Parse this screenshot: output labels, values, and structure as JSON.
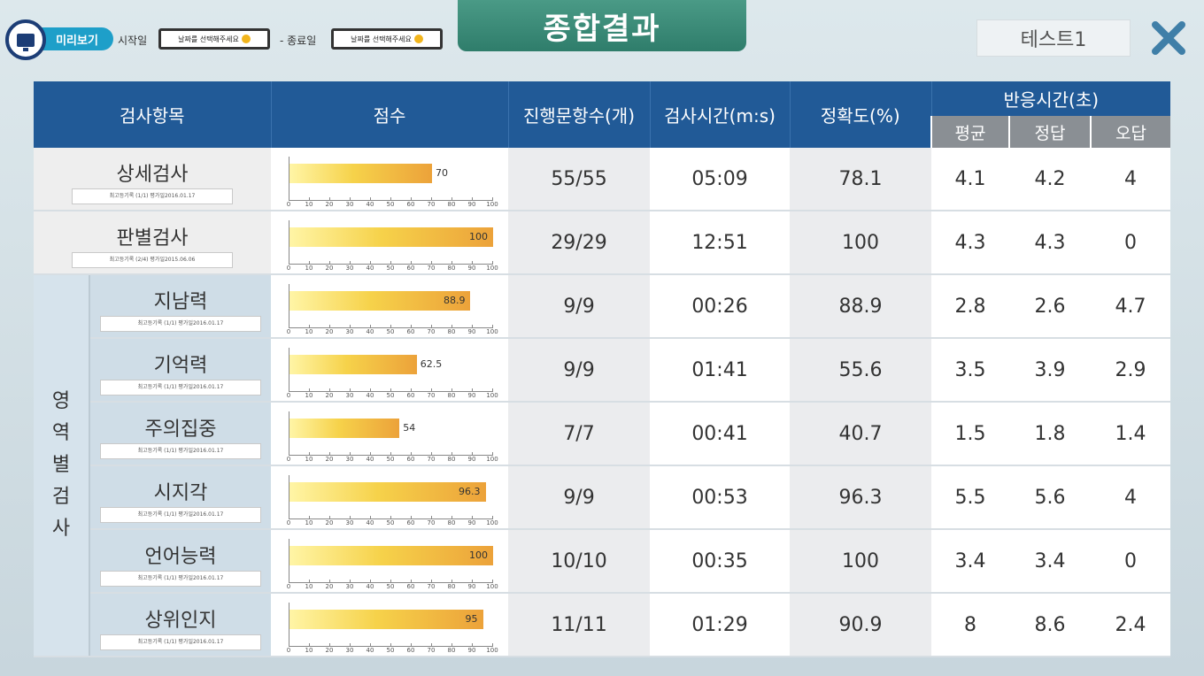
{
  "header": {
    "preview_label": "미리보기",
    "start_label": "시작일",
    "start_placeholder": "날짜를 선택해주세요",
    "end_label": "- 종료일",
    "end_placeholder": "날짜를 선택해주세요",
    "title": "종합결과",
    "test_name": "테스트1"
  },
  "table": {
    "headers": {
      "item": "검사항목",
      "score": "점수",
      "progress": "진행문항수(개)",
      "time": "검사시간(m:s)",
      "accuracy": "정확도(%)",
      "reaction": "반응시간(초)",
      "avg": "평균",
      "correct": "정답",
      "wrong": "오답"
    },
    "group_label": "영역별검사",
    "axis_ticks": [
      "0",
      "10",
      "20",
      "30",
      "40",
      "50",
      "60",
      "70",
      "80",
      "90",
      "100"
    ],
    "rows": [
      {
        "name": "상세검사",
        "sub": "최고등기록 (1/1) 평가일2016.01.17",
        "score": 70,
        "score_label": "70",
        "progress": "55/55",
        "time": "05:09",
        "accuracy": "78.1",
        "avg": "4.1",
        "correct": "4.2",
        "wrong": "4"
      },
      {
        "name": "판별검사",
        "sub": "최고등기록 (2/4) 평가일2015.06.06",
        "score": 100,
        "score_label": "100",
        "progress": "29/29",
        "time": "12:51",
        "accuracy": "100",
        "avg": "4.3",
        "correct": "4.3",
        "wrong": "0"
      },
      {
        "name": "지남력",
        "sub": "최고등기록 (1/1) 평가일2016.01.17",
        "score": 88.9,
        "score_label": "88.9",
        "progress": "9/9",
        "time": "00:26",
        "accuracy": "88.9",
        "avg": "2.8",
        "correct": "2.6",
        "wrong": "4.7"
      },
      {
        "name": "기억력",
        "sub": "최고등기록 (1/1) 평가일2016.01.17",
        "score": 62.5,
        "score_label": "62.5",
        "progress": "9/9",
        "time": "01:41",
        "accuracy": "55.6",
        "avg": "3.5",
        "correct": "3.9",
        "wrong": "2.9"
      },
      {
        "name": "주의집중",
        "sub": "최고등기록 (1/1) 평가일2016.01.17",
        "score": 54,
        "score_label": "54",
        "progress": "7/7",
        "time": "00:41",
        "accuracy": "40.7",
        "avg": "1.5",
        "correct": "1.8",
        "wrong": "1.4"
      },
      {
        "name": "시지각",
        "sub": "최고등기록 (1/1) 평가일2016.01.17",
        "score": 96.3,
        "score_label": "96.3",
        "progress": "9/9",
        "time": "00:53",
        "accuracy": "96.3",
        "avg": "5.5",
        "correct": "5.6",
        "wrong": "4"
      },
      {
        "name": "언어능력",
        "sub": "최고등기록 (1/1) 평가일2016.01.17",
        "score": 100,
        "score_label": "100",
        "progress": "10/10",
        "time": "00:35",
        "accuracy": "100",
        "avg": "3.4",
        "correct": "3.4",
        "wrong": "0"
      },
      {
        "name": "상위인지",
        "sub": "최고등기록 (1/1) 평가일2016.01.17",
        "score": 95,
        "score_label": "95",
        "progress": "11/11",
        "time": "01:29",
        "accuracy": "90.9",
        "avg": "8",
        "correct": "8.6",
        "wrong": "2.4"
      }
    ]
  },
  "colors": {
    "header_blue": "#215a97",
    "title_green": "#3a8a77",
    "bar_orange": "#eca23a",
    "close_icon": "#3f7fa8"
  }
}
